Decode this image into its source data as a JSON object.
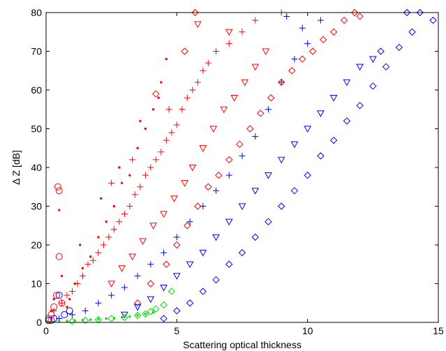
{
  "chart_data": {
    "type": "scatter",
    "title": "",
    "xlabel": "Scattering optical thickness",
    "ylabel": "Δ Z  [dB]",
    "xlim": [
      0,
      15
    ],
    "ylim": [
      0,
      80
    ],
    "xticks": [
      0,
      5,
      10,
      15
    ],
    "xtick_labels": [
      "0",
      "5",
      "10",
      "15"
    ],
    "yticks": [
      0,
      10,
      20,
      30,
      40,
      50,
      60,
      70,
      80
    ],
    "ytick_labels": [
      "0",
      "10",
      "20",
      "30",
      "40",
      "50",
      "60",
      "70",
      "80"
    ],
    "grid": false,
    "legend": "none",
    "series": [
      {
        "color": "#ff0000",
        "marker": "point",
        "x": [
          0.3,
          0.6,
          0.9,
          1.1,
          1.4,
          1.7,
          2.0,
          2.3,
          2.6,
          2.9,
          3.2,
          3.5,
          3.8,
          4.1,
          4.4,
          4.6,
          0.5,
          1.3,
          2.1,
          2.8,
          3.6,
          4.3,
          0.2,
          0.8
        ],
        "y": [
          6,
          12,
          6,
          10,
          14,
          17,
          22,
          26,
          30,
          36,
          38,
          45,
          50,
          55,
          62,
          68,
          29,
          20,
          32,
          40,
          52,
          58,
          3,
          4
        ]
      },
      {
        "color": "#ff0000",
        "marker": "circle",
        "x": [
          0.1,
          0.2,
          0.3,
          0.4,
          0.45,
          0.5,
          0.6,
          0.5,
          0.2
        ],
        "y": [
          1,
          2,
          4,
          7,
          35,
          34,
          5,
          17,
          0.5
        ]
      },
      {
        "color": "#ff0000",
        "marker": "plus",
        "x": [
          0.3,
          0.6,
          0.8,
          1.0,
          1.2,
          1.4,
          1.6,
          1.8,
          2.0,
          2.2,
          2.4,
          2.6,
          2.8,
          3.0,
          3.2,
          3.4,
          3.6,
          3.8,
          4.0,
          4.2,
          4.4,
          4.6,
          4.8,
          5.0,
          5.2,
          5.4,
          5.6,
          5.8,
          6.0,
          6.2,
          6.5,
          7.0,
          7.5,
          8.0,
          9.0,
          2.5,
          3.3,
          4.7
        ],
        "y": [
          3,
          5,
          7,
          8,
          10,
          12,
          15,
          16,
          18,
          20,
          22,
          24,
          26,
          28,
          30,
          33,
          35,
          38,
          40,
          42,
          44,
          47,
          49,
          51,
          55,
          58,
          60,
          62,
          65,
          67,
          70,
          72,
          75,
          78,
          80,
          36,
          42,
          55
        ]
      },
      {
        "color": "#ff0000",
        "marker": "triangle-down",
        "x": [
          2.5,
          2.9,
          3.3,
          3.7,
          4.1,
          4.5,
          4.9,
          5.3,
          5.6,
          6.0,
          6.4,
          6.8,
          7.2,
          7.6,
          8.0,
          8.4,
          5.8,
          7.0
        ],
        "y": [
          10,
          14,
          17,
          21,
          25,
          28,
          32,
          36,
          40,
          45,
          50,
          55,
          58,
          62,
          66,
          70,
          77,
          75
        ]
      },
      {
        "color": "#ff0000",
        "marker": "diamond",
        "x": [
          3.5,
          4.0,
          4.2,
          4.6,
          5.0,
          5.4,
          5.8,
          6.2,
          6.6,
          7.0,
          7.4,
          7.8,
          8.2,
          8.6,
          9.0,
          9.4,
          9.8,
          10.2,
          10.6,
          11.0,
          11.4,
          11.8,
          12.0,
          5.3,
          5.7
        ],
        "y": [
          5,
          10,
          59,
          15,
          20,
          25,
          30,
          35,
          38,
          42,
          46,
          50,
          54,
          58,
          62,
          65,
          68,
          70,
          73,
          75,
          78,
          80,
          79,
          70,
          80
        ]
      },
      {
        "color": "#0000ff",
        "marker": "plus",
        "x": [
          0.5,
          1.0,
          1.5,
          2.0,
          2.5,
          3.0,
          3.5,
          4.0,
          4.5,
          5.0,
          5.5,
          6.0,
          6.5,
          7.0,
          7.5,
          8.0,
          8.5,
          9.0,
          9.5,
          10.0,
          10.5,
          9.2,
          9.8
        ],
        "y": [
          1,
          2,
          3,
          5,
          7,
          9,
          12,
          15,
          18,
          22,
          26,
          30,
          34,
          38,
          43,
          48,
          55,
          62,
          68,
          72,
          78,
          79,
          76
        ]
      },
      {
        "color": "#0000ff",
        "marker": "triangle-down",
        "x": [
          3.0,
          3.5,
          4.0,
          4.5,
          5.0,
          5.5,
          6.0,
          6.5,
          7.0,
          7.5,
          8.0,
          8.5,
          9.0,
          9.5,
          10.0,
          10.5,
          11.0,
          11.5,
          12.0,
          12.5
        ],
        "y": [
          2,
          4,
          6,
          9,
          12,
          15,
          18,
          22,
          26,
          30,
          34,
          38,
          42,
          46,
          50,
          54,
          58,
          62,
          66,
          68
        ]
      },
      {
        "color": "#0000ff",
        "marker": "diamond",
        "x": [
          4.5,
          5.0,
          5.5,
          6.0,
          6.5,
          7.0,
          7.5,
          8.0,
          8.5,
          9.0,
          9.5,
          10.0,
          10.5,
          11.0,
          11.5,
          12.0,
          12.5,
          13.0,
          13.5,
          14.0,
          14.3,
          14.8,
          13.8,
          12.8
        ],
        "y": [
          1,
          3,
          5,
          8,
          11,
          15,
          18,
          22,
          26,
          30,
          34,
          38,
          43,
          47,
          52,
          56,
          61,
          66,
          71,
          75,
          80,
          78,
          80,
          70
        ]
      },
      {
        "color": "#0000ff",
        "marker": "circle",
        "x": [
          0.1,
          0.3,
          0.5,
          0.7,
          0.9
        ],
        "y": [
          0.5,
          1,
          7,
          2,
          3
        ]
      },
      {
        "color": "#00dd00",
        "marker": "point",
        "x": [
          0.2,
          0.5,
          0.8,
          1.1,
          1.4,
          1.7,
          2.0,
          2.3,
          2.6,
          2.9,
          3.2,
          3.5,
          3.8,
          4.1
        ],
        "y": [
          0.2,
          0.3,
          0.4,
          0.5,
          0.6,
          0.7,
          0.8,
          1.0,
          1.1,
          1.3,
          1.5,
          1.8,
          2.2,
          2.6
        ]
      },
      {
        "color": "#00dd00",
        "marker": "diamond",
        "x": [
          1.0,
          1.5,
          2.0,
          2.5,
          3.0,
          3.5,
          3.8,
          4.0,
          4.2,
          4.5,
          4.8
        ],
        "y": [
          0.3,
          0.5,
          0.7,
          1.0,
          1.3,
          1.8,
          2.2,
          2.8,
          3.5,
          4.5,
          8
        ]
      }
    ]
  }
}
